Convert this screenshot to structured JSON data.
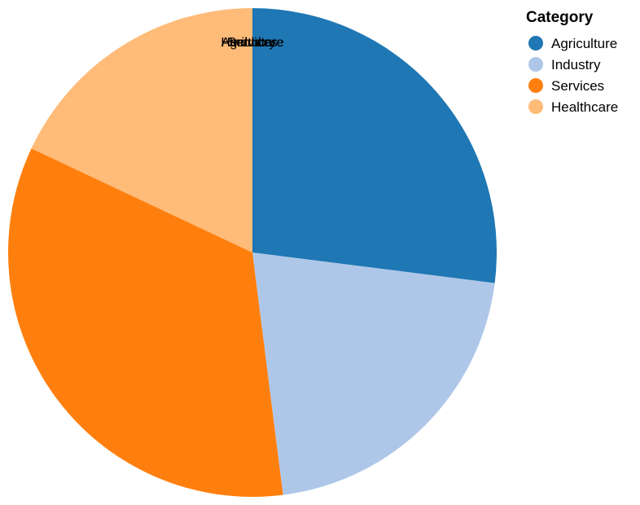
{
  "chart_data": {
    "type": "pie",
    "title": "",
    "legend_title": "Category",
    "legend_position": "top-right",
    "slices": [
      {
        "label": "Agriculture",
        "value": 27.0,
        "color": "#1f77b4"
      },
      {
        "label": "Industry",
        "value": 21.0,
        "color": "#aec7e8"
      },
      {
        "label": "Services",
        "value": 34.0,
        "color": "#ff7f0e"
      },
      {
        "label": "Healthcare",
        "value": 18.0,
        "color": "#ffbb78"
      }
    ]
  }
}
